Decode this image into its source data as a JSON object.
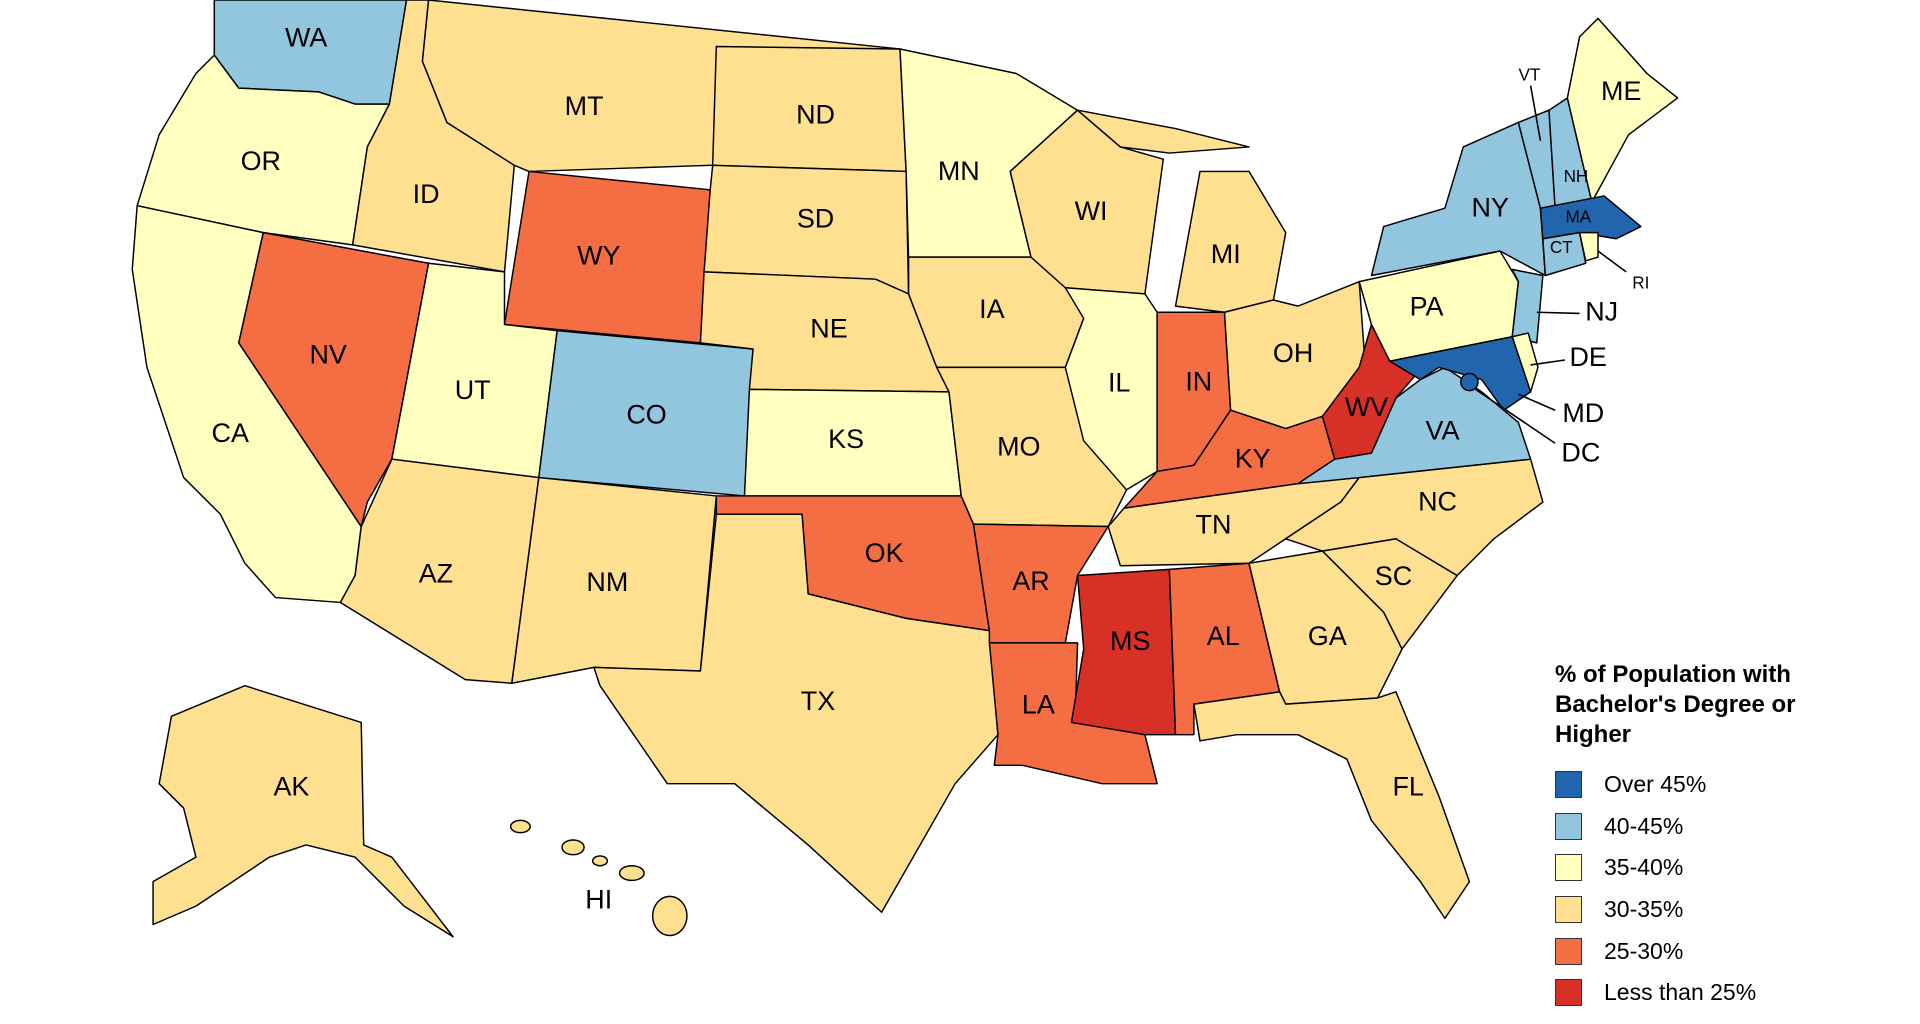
{
  "title": "% of Population with Bachelor's Degree or Higher",
  "legend": [
    {
      "label": "Over 45%",
      "color": "#2166ac",
      "states": [
        "MA",
        "MD",
        "DC"
      ]
    },
    {
      "label": "40-45%",
      "color": "#92c5de",
      "states": [
        "WA",
        "CO",
        "NY",
        "VT",
        "NH",
        "CT",
        "NJ",
        "VA"
      ]
    },
    {
      "label": "35-40%",
      "color": "#ffffbf",
      "states": [
        "OR",
        "CA",
        "UT",
        "MN",
        "KS",
        "IL",
        "PA",
        "ME",
        "DE",
        "RI"
      ]
    },
    {
      "label": "30-35%",
      "color": "#fee090",
      "states": [
        "MT",
        "ID",
        "ND",
        "SD",
        "NE",
        "WI",
        "IA",
        "MI",
        "MO",
        "OH",
        "TX",
        "NM",
        "AZ",
        "AK",
        "HI",
        "GA",
        "SC",
        "NC",
        "FL",
        "TN"
      ]
    },
    {
      "label": "25-30%",
      "color": "#f46d43",
      "states": [
        "NV",
        "WY",
        "OK",
        "AR",
        "LA",
        "AL",
        "IN",
        "KY"
      ]
    },
    {
      "label": "Less than 25%",
      "color": "#d73027",
      "states": [
        "MS",
        "WV"
      ]
    }
  ]
}
